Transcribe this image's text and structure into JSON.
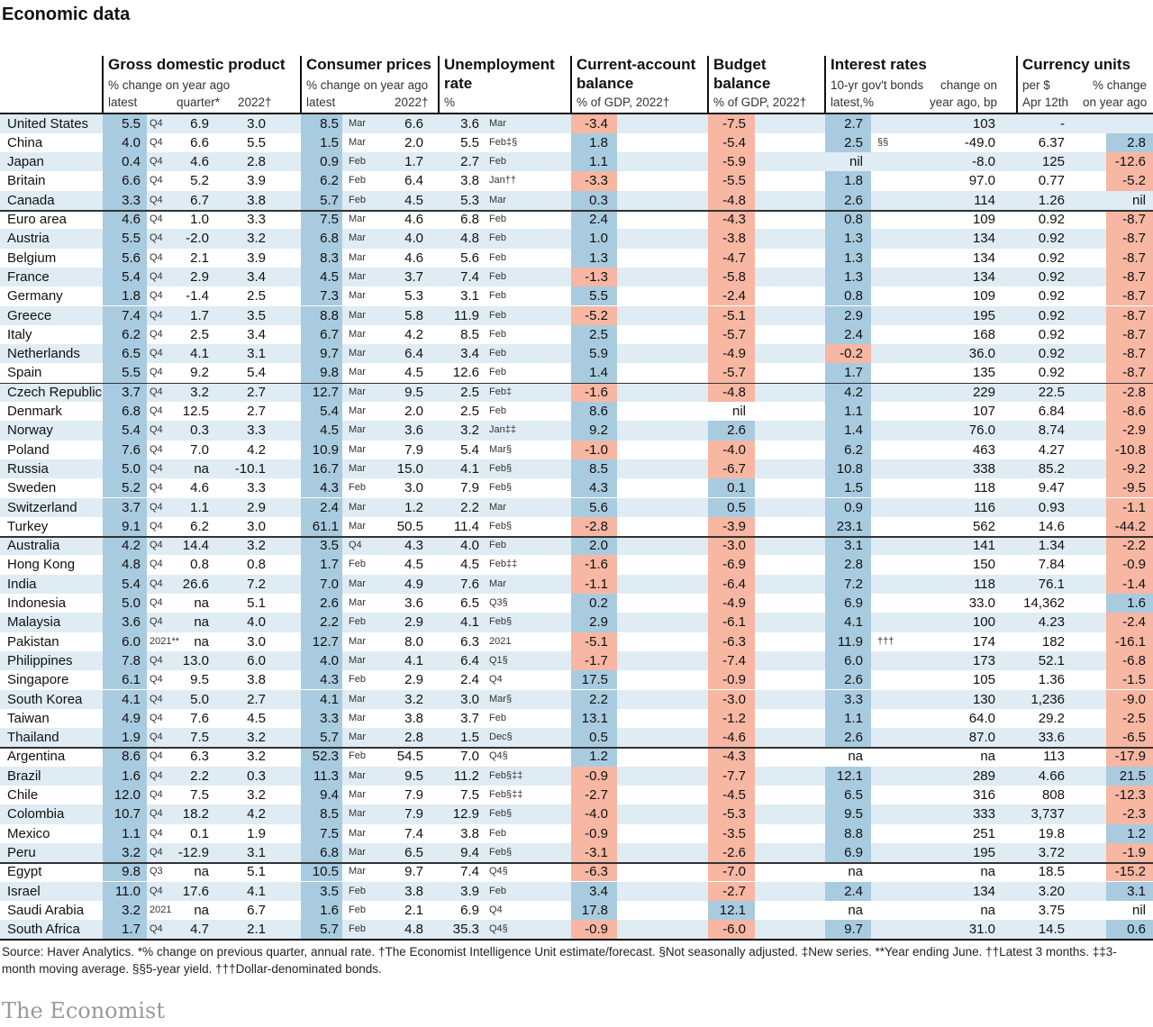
{
  "title": "Economic data",
  "headers": {
    "gdp": {
      "title": "Gross domestic product",
      "sub": "% change on year ago",
      "latest": "latest",
      "quarter": "quarter*",
      "year": "2022†"
    },
    "cpi": {
      "title": "Consumer prices",
      "sub": "% change on year ago",
      "latest": "latest",
      "year": "2022†"
    },
    "unemp": {
      "title1": "Unemployment",
      "title2": "rate",
      "sub": "%"
    },
    "ca": {
      "title1": "Current-account",
      "title2": "balance",
      "sub": "% of GDP, 2022†"
    },
    "budget": {
      "title1": "Budget",
      "title2": "balance",
      "sub": "% of GDP, 2022†"
    },
    "rates": {
      "title": "Interest rates",
      "sub1": "10-yr gov't bonds",
      "sub2": "latest,%",
      "sub3": "change on",
      "sub4": "year ago, bp"
    },
    "currency": {
      "title": "Currency units",
      "sub1": "per $",
      "sub2": "Apr 12th",
      "sub3": "% change",
      "sub4": "on year ago"
    }
  },
  "rows": [
    [
      "United States",
      "5.5",
      "Q4",
      "6.9",
      "3.0",
      "8.5",
      "Mar",
      "6.6",
      "3.6",
      "Mar",
      "-3.4",
      "-7.5",
      "2.7",
      "",
      "103",
      "-",
      "",
      ""
    ],
    [
      "China",
      "4.0",
      "Q4",
      "6.6",
      "5.5",
      "1.5",
      "Mar",
      "2.0",
      "5.5",
      "Feb‡§",
      "1.8",
      "-5.4",
      "2.5",
      "§§",
      "-49.0",
      "6.37",
      "2.8",
      "b"
    ],
    [
      "Japan",
      "0.4",
      "Q4",
      "4.6",
      "2.8",
      "0.9",
      "Feb",
      "1.7",
      "2.7",
      "Feb",
      "1.1",
      "-5.9",
      "nil",
      "",
      "-8.0",
      "125",
      "-12.6",
      "r"
    ],
    [
      "Britain",
      "6.6",
      "Q4",
      "5.2",
      "3.9",
      "6.2",
      "Feb",
      "6.4",
      "3.8",
      "Jan††",
      "-3.3",
      "-5.5",
      "1.8",
      "",
      "97.0",
      "0.77",
      "-5.2",
      "r"
    ],
    [
      "Canada",
      "3.3",
      "Q4",
      "6.7",
      "3.8",
      "5.7",
      "Feb",
      "4.5",
      "5.3",
      "Mar",
      "0.3",
      "-4.8",
      "2.6",
      "",
      "114",
      "1.26",
      "nil",
      ""
    ],
    [
      "Euro area",
      "4.6",
      "Q4",
      "1.0",
      "3.3",
      "7.5",
      "Mar",
      "4.6",
      "6.8",
      "Feb",
      "2.4",
      "-4.3",
      "0.8",
      "",
      "109",
      "0.92",
      "-8.7",
      "r"
    ],
    [
      "Austria",
      "5.5",
      "Q4",
      "-2.0",
      "3.2",
      "6.8",
      "Mar",
      "4.0",
      "4.8",
      "Feb",
      "1.0",
      "-3.8",
      "1.3",
      "",
      "134",
      "0.92",
      "-8.7",
      "r"
    ],
    [
      "Belgium",
      "5.6",
      "Q4",
      "2.1",
      "3.9",
      "8.3",
      "Mar",
      "4.6",
      "5.6",
      "Feb",
      "1.3",
      "-4.7",
      "1.3",
      "",
      "134",
      "0.92",
      "-8.7",
      "r"
    ],
    [
      "France",
      "5.4",
      "Q4",
      "2.9",
      "3.4",
      "4.5",
      "Mar",
      "3.7",
      "7.4",
      "Feb",
      "-1.3",
      "-5.8",
      "1.3",
      "",
      "134",
      "0.92",
      "-8.7",
      "r"
    ],
    [
      "Germany",
      "1.8",
      "Q4",
      "-1.4",
      "2.5",
      "7.3",
      "Mar",
      "5.3",
      "3.1",
      "Feb",
      "5.5",
      "-2.4",
      "0.8",
      "",
      "109",
      "0.92",
      "-8.7",
      "r"
    ],
    [
      "Greece",
      "7.4",
      "Q4",
      "1.7",
      "3.5",
      "8.8",
      "Mar",
      "5.8",
      "11.9",
      "Feb",
      "-5.2",
      "-5.1",
      "2.9",
      "",
      "195",
      "0.92",
      "-8.7",
      "r"
    ],
    [
      "Italy",
      "6.2",
      "Q4",
      "2.5",
      "3.4",
      "6.7",
      "Mar",
      "4.2",
      "8.5",
      "Feb",
      "2.5",
      "-5.7",
      "2.4",
      "",
      "168",
      "0.92",
      "-8.7",
      "r"
    ],
    [
      "Netherlands",
      "6.5",
      "Q4",
      "4.1",
      "3.1",
      "9.7",
      "Mar",
      "6.4",
      "3.4",
      "Feb",
      "5.9",
      "-4.9",
      "-0.2",
      "",
      "36.0",
      "0.92",
      "-8.7",
      "r"
    ],
    [
      "Spain",
      "5.5",
      "Q4",
      "9.2",
      "5.4",
      "9.8",
      "Mar",
      "4.5",
      "12.6",
      "Feb",
      "1.4",
      "-5.7",
      "1.7",
      "",
      "135",
      "0.92",
      "-8.7",
      "r"
    ],
    [
      "Czech Republic",
      "3.7",
      "Q4",
      "3.2",
      "2.7",
      "12.7",
      "Mar",
      "9.5",
      "2.5",
      "Feb‡",
      "-1.6",
      "-4.8",
      "4.2",
      "",
      "229",
      "22.5",
      "-2.8",
      "r"
    ],
    [
      "Denmark",
      "6.8",
      "Q4",
      "12.5",
      "2.7",
      "5.4",
      "Mar",
      "2.0",
      "2.5",
      "Feb",
      "8.6",
      "nil",
      "1.1",
      "",
      "107",
      "6.84",
      "-8.6",
      "r"
    ],
    [
      "Norway",
      "5.4",
      "Q4",
      "0.3",
      "3.3",
      "4.5",
      "Mar",
      "3.6",
      "3.2",
      "Jan‡‡",
      "9.2",
      "2.6",
      "1.4",
      "",
      "76.0",
      "8.74",
      "-2.9",
      "r"
    ],
    [
      "Poland",
      "7.6",
      "Q4",
      "7.0",
      "4.2",
      "10.9",
      "Mar",
      "7.9",
      "5.4",
      "Mar§",
      "-1.0",
      "-4.0",
      "6.2",
      "",
      "463",
      "4.27",
      "-10.8",
      "r"
    ],
    [
      "Russia",
      "5.0",
      "Q4",
      "na",
      "-10.1",
      "16.7",
      "Mar",
      "15.0",
      "4.1",
      "Feb§",
      "8.5",
      "-6.7",
      "10.8",
      "",
      "338",
      "85.2",
      "-9.2",
      "r"
    ],
    [
      "Sweden",
      "5.2",
      "Q4",
      "4.6",
      "3.3",
      "4.3",
      "Feb",
      "3.0",
      "7.9",
      "Feb§",
      "4.3",
      "0.1",
      "1.5",
      "",
      "118",
      "9.47",
      "-9.5",
      "r"
    ],
    [
      "Switzerland",
      "3.7",
      "Q4",
      "1.1",
      "2.9",
      "2.4",
      "Mar",
      "1.2",
      "2.2",
      "Mar",
      "5.6",
      "0.5",
      "0.9",
      "",
      "116",
      "0.93",
      "-1.1",
      "r"
    ],
    [
      "Turkey",
      "9.1",
      "Q4",
      "6.2",
      "3.0",
      "61.1",
      "Mar",
      "50.5",
      "11.4",
      "Feb§",
      "-2.8",
      "-3.9",
      "23.1",
      "",
      "562",
      "14.6",
      "-44.2",
      "r"
    ],
    [
      "Australia",
      "4.2",
      "Q4",
      "14.4",
      "3.2",
      "3.5",
      "Q4",
      "4.3",
      "4.0",
      "Feb",
      "2.0",
      "-3.0",
      "3.1",
      "",
      "141",
      "1.34",
      "-2.2",
      "r"
    ],
    [
      "Hong Kong",
      "4.8",
      "Q4",
      "0.8",
      "0.8",
      "1.7",
      "Feb",
      "4.5",
      "4.5",
      "Feb‡‡",
      "-1.6",
      "-6.9",
      "2.8",
      "",
      "150",
      "7.84",
      "-0.9",
      "r"
    ],
    [
      "India",
      "5.4",
      "Q4",
      "26.6",
      "7.2",
      "7.0",
      "Mar",
      "4.9",
      "7.6",
      "Mar",
      "-1.1",
      "-6.4",
      "7.2",
      "",
      "118",
      "76.1",
      "-1.4",
      "r"
    ],
    [
      "Indonesia",
      "5.0",
      "Q4",
      "na",
      "5.1",
      "2.6",
      "Mar",
      "3.6",
      "6.5",
      "Q3§",
      "0.2",
      "-4.9",
      "6.9",
      "",
      "33.0",
      "14,362",
      "1.6",
      "b"
    ],
    [
      "Malaysia",
      "3.6",
      "Q4",
      "na",
      "4.0",
      "2.2",
      "Feb",
      "2.9",
      "4.1",
      "Feb§",
      "2.9",
      "-6.1",
      "4.1",
      "",
      "100",
      "4.23",
      "-2.4",
      "r"
    ],
    [
      "Pakistan",
      "6.0",
      "2021**",
      "na",
      "3.0",
      "12.7",
      "Mar",
      "8.0",
      "6.3",
      "2021",
      "-5.1",
      "-6.3",
      "11.9",
      "†††",
      "174",
      "182",
      "-16.1",
      "r"
    ],
    [
      "Philippines",
      "7.8",
      "Q4",
      "13.0",
      "6.0",
      "4.0",
      "Mar",
      "4.1",
      "6.4",
      "Q1§",
      "-1.7",
      "-7.4",
      "6.0",
      "",
      "173",
      "52.1",
      "-6.8",
      "r"
    ],
    [
      "Singapore",
      "6.1",
      "Q4",
      "9.5",
      "3.8",
      "4.3",
      "Feb",
      "2.9",
      "2.4",
      "Q4",
      "17.5",
      "-0.9",
      "2.6",
      "",
      "105",
      "1.36",
      "-1.5",
      "r"
    ],
    [
      "South Korea",
      "4.1",
      "Q4",
      "5.0",
      "2.7",
      "4.1",
      "Mar",
      "3.2",
      "3.0",
      "Mar§",
      "2.2",
      "-3.0",
      "3.3",
      "",
      "130",
      "1,236",
      "-9.0",
      "r"
    ],
    [
      "Taiwan",
      "4.9",
      "Q4",
      "7.6",
      "4.5",
      "3.3",
      "Mar",
      "3.8",
      "3.7",
      "Feb",
      "13.1",
      "-1.2",
      "1.1",
      "",
      "64.0",
      "29.2",
      "-2.5",
      "r"
    ],
    [
      "Thailand",
      "1.9",
      "Q4",
      "7.5",
      "3.2",
      "5.7",
      "Mar",
      "2.8",
      "1.5",
      "Dec§",
      "0.5",
      "-4.6",
      "2.6",
      "",
      "87.0",
      "33.6",
      "-6.5",
      "r"
    ],
    [
      "Argentina",
      "8.6",
      "Q4",
      "6.3",
      "3.2",
      "52.3",
      "Feb",
      "54.5",
      "7.0",
      "Q4§",
      "1.2",
      "-4.3",
      "na",
      "",
      "na",
      "113",
      "-17.9",
      "r"
    ],
    [
      "Brazil",
      "1.6",
      "Q4",
      "2.2",
      "0.3",
      "11.3",
      "Mar",
      "9.5",
      "11.2",
      "Feb§‡‡",
      "-0.9",
      "-7.7",
      "12.1",
      "",
      "289",
      "4.66",
      "21.5",
      "b"
    ],
    [
      "Chile",
      "12.0",
      "Q4",
      "7.5",
      "3.2",
      "9.4",
      "Mar",
      "7.9",
      "7.5",
      "Feb§‡‡",
      "-2.7",
      "-4.5",
      "6.5",
      "",
      "316",
      "808",
      "-12.3",
      "r"
    ],
    [
      "Colombia",
      "10.7",
      "Q4",
      "18.2",
      "4.2",
      "8.5",
      "Mar",
      "7.9",
      "12.9",
      "Feb§",
      "-4.0",
      "-5.3",
      "9.5",
      "",
      "333",
      "3,737",
      "-2.3",
      "r"
    ],
    [
      "Mexico",
      "1.1",
      "Q4",
      "0.1",
      "1.9",
      "7.5",
      "Mar",
      "7.4",
      "3.8",
      "Feb",
      "-0.9",
      "-3.5",
      "8.8",
      "",
      "251",
      "19.8",
      "1.2",
      "b"
    ],
    [
      "Peru",
      "3.2",
      "Q4",
      "-12.9",
      "3.1",
      "6.8",
      "Mar",
      "6.5",
      "9.4",
      "Feb§",
      "-3.1",
      "-2.6",
      "6.9",
      "",
      "195",
      "3.72",
      "-1.9",
      "r"
    ],
    [
      "Egypt",
      "9.8",
      "Q3",
      "na",
      "5.1",
      "10.5",
      "Mar",
      "9.7",
      "7.4",
      "Q4§",
      "-6.3",
      "-7.0",
      "na",
      "",
      "na",
      "18.5",
      "-15.2",
      "r"
    ],
    [
      "Israel",
      "11.0",
      "Q4",
      "17.6",
      "4.1",
      "3.5",
      "Feb",
      "3.8",
      "3.9",
      "Feb",
      "3.4",
      "-2.7",
      "2.4",
      "",
      "134",
      "3.20",
      "3.1",
      "b"
    ],
    [
      "Saudi Arabia",
      "3.2",
      "2021",
      "na",
      "6.7",
      "1.6",
      "Feb",
      "2.1",
      "6.9",
      "Q4",
      "17.8",
      "12.1",
      "na",
      "",
      "na",
      "3.75",
      "nil",
      ""
    ],
    [
      "South Africa",
      "1.7",
      "Q4",
      "4.7",
      "2.1",
      "5.7",
      "Feb",
      "4.8",
      "35.3",
      "Q4§",
      "-0.9",
      "-6.0",
      "9.7",
      "",
      "31.0",
      "14.5",
      "0.6",
      "b"
    ]
  ],
  "footer": "Source: Haver Analytics. *% change on previous quarter, annual rate. †The Economist Intelligence Unit estimate/forecast. §Not seasonally adjusted. ‡New series. **Year ending June. ††Latest 3 months. ‡‡3-month moving average. §§5-year yield. †††Dollar-denominated bonds.",
  "brand": "The Economist",
  "colors": {
    "blue": "#a9cbe0",
    "red": "#f7b7a3"
  }
}
